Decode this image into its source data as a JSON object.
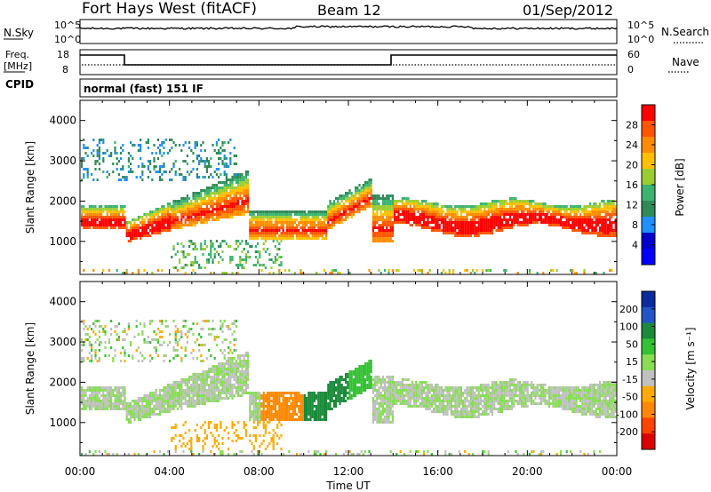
{
  "header": {
    "station": "Fort Hays West (fitACF)",
    "beam": "Beam 12",
    "date": "01/Sep/2012"
  },
  "top_panels": {
    "nsky_label": "N.Sky",
    "nsearch_label": "N.Search",
    "freq_label_line1": "Freq.",
    "freq_label_line2": "[MHz]",
    "nave_label": "Nave",
    "cpid_label": "CPID",
    "cpid_text": "normal (fast) 151 IF",
    "noise_left_ticks": [
      "10^5",
      "10^0"
    ],
    "noise_right_ticks": [
      "10^5",
      "10^0"
    ],
    "freq_left_ticks": [
      "18",
      "8"
    ],
    "freq_right_ticks": [
      "60",
      "0"
    ]
  },
  "colorbars": {
    "power": {
      "label": "Power [dB]",
      "ticks": [
        "28",
        "24",
        "20",
        "16",
        "12",
        "8",
        "4"
      ],
      "colors": [
        "#ff0000",
        "#ff5500",
        "#ff8c00",
        "#ffc000",
        "#9acd32",
        "#3cb371",
        "#2e8b57",
        "#1e90ff",
        "#0000cd",
        "#0000ff"
      ]
    },
    "velocity": {
      "label": "Velocity [m s⁻¹]",
      "ticks": [
        "200",
        "100",
        "50",
        "15",
        "-15",
        "-50",
        "-100",
        "-200"
      ],
      "colors": [
        "#0a2aa0",
        "#2255c8",
        "#1a8a3a",
        "#33c233",
        "#88dd55",
        "#c0c0c0",
        "#ffaa00",
        "#ff8800",
        "#ff4400",
        "#dd0000"
      ]
    }
  },
  "chart_data": [
    {
      "type": "heatmap",
      "title": "Power",
      "xlabel": "Time UT",
      "ylabel": "Slant Range [km]",
      "x_ticks": [
        "00:00",
        "04:00",
        "08:00",
        "12:00",
        "16:00",
        "20:00",
        "00:00"
      ],
      "y_ticks": [
        "1000",
        "2000",
        "3000",
        "4000"
      ],
      "xlim_hours": [
        0,
        24
      ],
      "ylim_km": [
        180,
        4500
      ],
      "colorbar": "Power [dB]",
      "features": [
        {
          "band": "main scatter",
          "t_start": 0,
          "t_end": 24,
          "range_km": [
            1300,
            2000
          ],
          "peak_db": 28
        },
        {
          "band": "upper patchy scatter",
          "t_start": 0,
          "t_end": 7,
          "range_km": [
            2500,
            3600
          ],
          "peak_db": 10
        }
      ]
    },
    {
      "type": "heatmap",
      "title": "Velocity",
      "xlabel": "Time UT",
      "ylabel": "Slant Range [km]",
      "x_ticks": [
        "00:00",
        "04:00",
        "08:00",
        "12:00",
        "16:00",
        "20:00",
        "00:00"
      ],
      "y_ticks": [
        "1000",
        "2000",
        "3000",
        "4000"
      ],
      "xlim_hours": [
        0,
        24
      ],
      "ylim_km": [
        180,
        4500
      ],
      "colorbar": "Velocity [m s⁻¹]"
    }
  ],
  "xaxis": {
    "label": "Time UT",
    "ticks": [
      "00:00",
      "04:00",
      "08:00",
      "12:00",
      "16:00",
      "20:00",
      "00:00"
    ]
  },
  "yaxis": {
    "label": "Slant Range [km]",
    "ticks": [
      "1000",
      "2000",
      "3000",
      "4000"
    ]
  }
}
